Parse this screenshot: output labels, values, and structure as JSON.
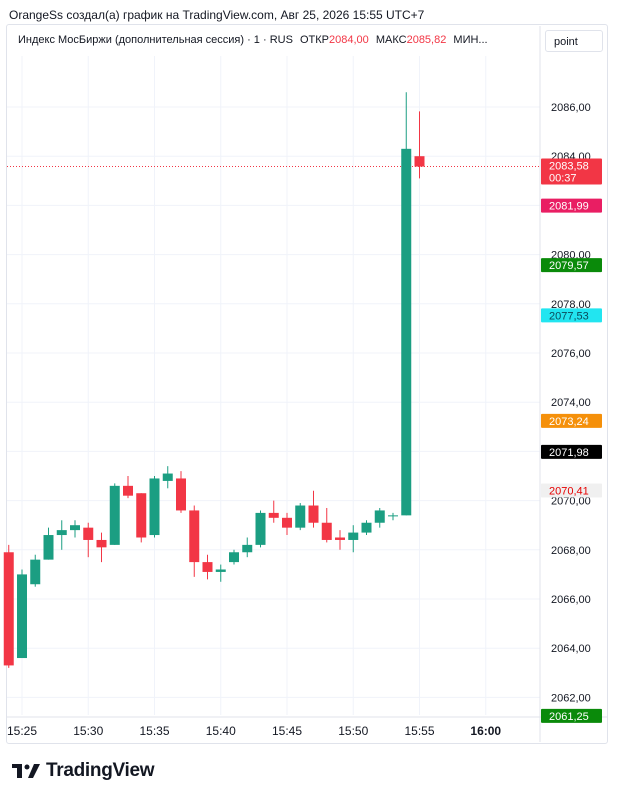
{
  "caption": "OrangeSs создал(а) график на TradingView.com, Авг 25, 2026 15:55 UTC+7",
  "header": {
    "symbol": "Индекс МосБиржи (дополнительная сессия) · 1 · RUS",
    "open_label": "ОТКР",
    "open_value": "2084,00",
    "high_label": "МАКС",
    "high_value": "2085,82",
    "low_label": "МИН..."
  },
  "point_button": "point",
  "logo_text": "TradingView",
  "colors": {
    "up": "#1b9e82",
    "down": "#f23645",
    "grid": "#f0f3fa",
    "text": "#131722"
  },
  "chart_data": {
    "type": "candlestick",
    "title": "Индекс МосБиржи (дополнительная сессия) · 1 · RUS",
    "ylim": [
      2061.0,
      2087.5
    ],
    "y_ticks": [
      "2062,00",
      "2064,00",
      "2066,00",
      "2068,00",
      "2070,00",
      "2072,00",
      "2074,00",
      "2076,00",
      "2078,00",
      "2080,00",
      "2082,00",
      "2084,00",
      "2086,00"
    ],
    "y_tick_values": [
      2062,
      2064,
      2066,
      2068,
      2070,
      2072,
      2074,
      2076,
      2078,
      2080,
      2082,
      2084,
      2086
    ],
    "x_ticks": [
      "15:25",
      "15:30",
      "15:35",
      "15:40",
      "15:45",
      "15:50",
      "15:55",
      "16:00"
    ],
    "x_tick_minutes": [
      25,
      30,
      35,
      40,
      45,
      50,
      55,
      60
    ],
    "grid": true,
    "candles": [
      {
        "m": 24,
        "o": 2067.9,
        "h": 2068.2,
        "l": 2063.2,
        "c": 2063.3
      },
      {
        "m": 25,
        "o": 2063.6,
        "h": 2067.2,
        "l": 2063.6,
        "c": 2067.0
      },
      {
        "m": 26,
        "o": 2066.6,
        "h": 2067.8,
        "l": 2066.5,
        "c": 2067.6
      },
      {
        "m": 27,
        "o": 2067.6,
        "h": 2068.9,
        "l": 2067.6,
        "c": 2068.6
      },
      {
        "m": 28,
        "o": 2068.6,
        "h": 2069.2,
        "l": 2068.0,
        "c": 2068.8
      },
      {
        "m": 29,
        "o": 2068.8,
        "h": 2069.2,
        "l": 2068.5,
        "c": 2069.0
      },
      {
        "m": 30,
        "o": 2068.9,
        "h": 2069.1,
        "l": 2067.7,
        "c": 2068.4
      },
      {
        "m": 31,
        "o": 2068.4,
        "h": 2068.7,
        "l": 2067.5,
        "c": 2068.1
      },
      {
        "m": 32,
        "o": 2068.2,
        "h": 2070.7,
        "l": 2068.2,
        "c": 2070.6
      },
      {
        "m": 33,
        "o": 2070.6,
        "h": 2071.0,
        "l": 2070.1,
        "c": 2070.2
      },
      {
        "m": 34,
        "o": 2070.3,
        "h": 2070.3,
        "l": 2068.3,
        "c": 2068.5
      },
      {
        "m": 35,
        "o": 2068.6,
        "h": 2071.0,
        "l": 2068.5,
        "c": 2070.9
      },
      {
        "m": 36,
        "o": 2070.8,
        "h": 2071.4,
        "l": 2070.5,
        "c": 2071.1
      },
      {
        "m": 37,
        "o": 2070.9,
        "h": 2071.2,
        "l": 2069.5,
        "c": 2069.6
      },
      {
        "m": 38,
        "o": 2069.6,
        "h": 2069.8,
        "l": 2066.9,
        "c": 2067.5
      },
      {
        "m": 39,
        "o": 2067.5,
        "h": 2067.8,
        "l": 2066.8,
        "c": 2067.1
      },
      {
        "m": 40,
        "o": 2067.1,
        "h": 2067.4,
        "l": 2066.7,
        "c": 2067.2
      },
      {
        "m": 41,
        "o": 2067.5,
        "h": 2068.0,
        "l": 2067.4,
        "c": 2067.9
      },
      {
        "m": 42,
        "o": 2067.9,
        "h": 2068.5,
        "l": 2067.7,
        "c": 2068.2
      },
      {
        "m": 43,
        "o": 2068.2,
        "h": 2069.6,
        "l": 2068.1,
        "c": 2069.5
      },
      {
        "m": 44,
        "o": 2069.5,
        "h": 2070.0,
        "l": 2069.1,
        "c": 2069.3
      },
      {
        "m": 45,
        "o": 2069.3,
        "h": 2069.5,
        "l": 2068.6,
        "c": 2068.9
      },
      {
        "m": 46,
        "o": 2068.9,
        "h": 2069.9,
        "l": 2068.8,
        "c": 2069.8
      },
      {
        "m": 47,
        "o": 2069.8,
        "h": 2070.4,
        "l": 2068.9,
        "c": 2069.1
      },
      {
        "m": 48,
        "o": 2069.1,
        "h": 2069.7,
        "l": 2068.3,
        "c": 2068.4
      },
      {
        "m": 49,
        "o": 2068.5,
        "h": 2068.8,
        "l": 2068.0,
        "c": 2068.4
      },
      {
        "m": 50,
        "o": 2068.4,
        "h": 2069.0,
        "l": 2067.9,
        "c": 2068.7
      },
      {
        "m": 51,
        "o": 2068.7,
        "h": 2069.2,
        "l": 2068.6,
        "c": 2069.1
      },
      {
        "m": 52,
        "o": 2069.1,
        "h": 2069.7,
        "l": 2068.9,
        "c": 2069.6
      },
      {
        "m": 53,
        "o": 2069.4,
        "h": 2069.5,
        "l": 2069.2,
        "c": 2069.4
      },
      {
        "m": 54,
        "o": 2069.4,
        "h": 2086.6,
        "l": 2069.4,
        "c": 2084.3
      },
      {
        "m": 55,
        "o": 2084.0,
        "h": 2085.82,
        "l": 2083.1,
        "c": 2083.58
      }
    ],
    "price_labels": [
      {
        "text": "2083,58",
        "sub": "00:37",
        "value": 2083.58,
        "color": "#f23645",
        "current": true
      },
      {
        "text": "2081,99",
        "value": 2081.99,
        "color": "#e91e63"
      },
      {
        "text": "2079,57",
        "value": 2079.57,
        "color": "#0a8a0a"
      },
      {
        "text": "2077,53",
        "value": 2077.53,
        "color": "#22e5f0",
        "dark_text": false
      },
      {
        "text": "2073,24",
        "value": 2073.24,
        "color": "#f5900a"
      },
      {
        "text": "2071,98",
        "value": 2071.98,
        "color": "#000000"
      },
      {
        "text": "2070,41",
        "value": 2070.41,
        "color": "#f0f0f0",
        "text_color": "#e60000"
      },
      {
        "text": "2061,25",
        "value": 2061.25,
        "color": "#0a8a0a"
      }
    ]
  }
}
